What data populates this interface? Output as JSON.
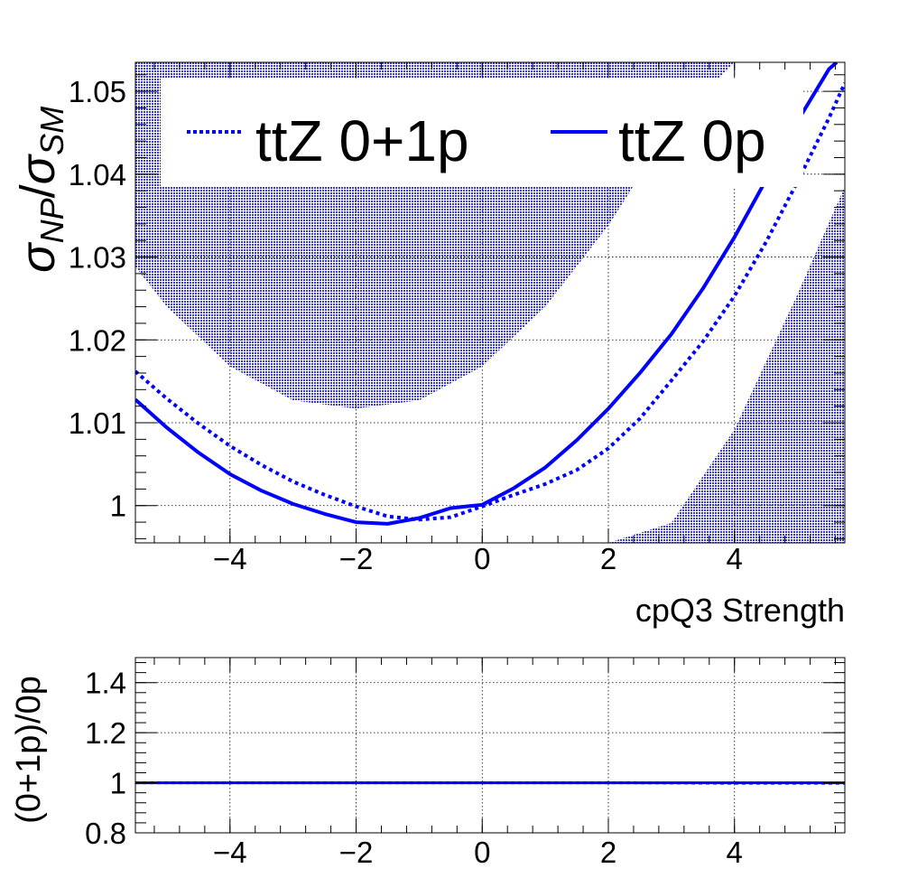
{
  "chart_data": [
    {
      "type": "line",
      "xlabel": "cpQ3 Strength",
      "ylabel_symbol": "σ",
      "ylabel_num_sub": "NP",
      "ylabel_den_sub": "SM",
      "xlim": [
        -5.5,
        5.75
      ],
      "ylim": [
        0.9955,
        1.0535
      ],
      "xticks": [
        {
          "value": -4,
          "label": "−4"
        },
        {
          "value": -2,
          "label": "−2"
        },
        {
          "value": 0,
          "label": "0"
        },
        {
          "value": 2,
          "label": "2"
        },
        {
          "value": 4,
          "label": "4"
        }
      ],
      "yticks": [
        {
          "value": 1.0,
          "label": "1"
        },
        {
          "value": 1.01,
          "label": "1.01"
        },
        {
          "value": 1.02,
          "label": "1.02"
        },
        {
          "value": 1.03,
          "label": "1.03"
        },
        {
          "value": 1.04,
          "label": "1.04"
        },
        {
          "value": 1.05,
          "label": "1.05"
        }
      ],
      "grid": true,
      "legend_position": "top",
      "band": {
        "color": "#2b2bc8",
        "x": [
          -5.5,
          -5.0,
          -4.0,
          -3.0,
          -2.0,
          -1.0,
          0.0,
          1.0,
          2.0,
          3.0,
          4.0,
          5.0,
          5.75
        ],
        "upper": [
          1.0535,
          1.0535,
          1.0535,
          1.0535,
          1.0535,
          1.0535,
          1.0535,
          1.0535,
          1.0535,
          1.0535,
          1.0535,
          1.0535,
          1.0535
        ],
        "upper_visible": [
          1.0288,
          1.024,
          1.0168,
          1.0127,
          1.0117,
          1.0127,
          1.0168,
          1.024,
          1.0338,
          1.0458,
          1.0535,
          1.0535,
          1.0535
        ],
        "lower": [
          0.9955,
          0.9955,
          0.9955,
          0.9955,
          0.9955,
          0.9955,
          0.9955,
          0.9955,
          0.9955,
          0.9979,
          1.0092,
          1.0255,
          1.0385
        ]
      },
      "series": [
        {
          "name": "ttZ 0+1p",
          "style": "dotted",
          "color": "#0000ff",
          "x": [
            -5.5,
            -5.0,
            -4.5,
            -4.0,
            -3.5,
            -3.0,
            -2.5,
            -2.0,
            -1.5,
            -1.0,
            -0.5,
            0.0,
            0.5,
            1.0,
            1.5,
            2.0,
            2.5,
            3.0,
            3.5,
            4.0,
            4.5,
            5.0,
            5.5,
            5.75
          ],
          "y": [
            1.0162,
            1.0129,
            1.0099,
            1.0072,
            1.0049,
            1.0029,
            1.0013,
            0.9999,
            0.9987,
            0.9983,
            0.9986,
            0.9999,
            1.0013,
            1.0026,
            1.0043,
            1.0069,
            1.0105,
            1.0151,
            1.0198,
            1.0253,
            1.0318,
            1.0391,
            1.0468,
            1.051
          ]
        },
        {
          "name": "ttZ 0p",
          "style": "solid",
          "color": "#0000ff",
          "x": [
            -5.5,
            -5.0,
            -4.5,
            -4.0,
            -3.5,
            -3.0,
            -2.5,
            -2.0,
            -1.5,
            -1.0,
            -0.5,
            0.0,
            0.5,
            1.0,
            1.5,
            2.0,
            2.5,
            3.0,
            3.5,
            4.0,
            4.5,
            5.0,
            5.5,
            5.62
          ],
          "y": [
            1.0128,
            1.0094,
            1.0064,
            1.0038,
            1.0018,
            1.0002,
            0.999,
            0.998,
            0.9978,
            0.9985,
            0.9997,
            1.0001,
            1.0021,
            1.0046,
            1.0079,
            1.0117,
            1.016,
            1.0207,
            1.0262,
            1.0324,
            1.0393,
            1.0464,
            1.0527,
            1.0535
          ]
        }
      ]
    },
    {
      "type": "line",
      "ylabel": "(0+1p)/0p",
      "xlim": [
        -5.5,
        5.75
      ],
      "ylim": [
        0.8,
        1.5
      ],
      "xticks": [
        {
          "value": -4,
          "label": "−4"
        },
        {
          "value": -2,
          "label": "−2"
        },
        {
          "value": 0,
          "label": "0"
        },
        {
          "value": 2,
          "label": "2"
        },
        {
          "value": 4,
          "label": "4"
        }
      ],
      "yticks": [
        {
          "value": 0.8,
          "label": "0.8"
        },
        {
          "value": 1.0,
          "label": "1"
        },
        {
          "value": 1.2,
          "label": "1.2"
        },
        {
          "value": 1.4,
          "label": "1.4"
        }
      ],
      "grid": true,
      "series": [
        {
          "style": "dotted",
          "color": "#0000ff",
          "x": [
            -5.5,
            -4.0,
            -2.0,
            0.0,
            2.0,
            4.0,
            5.75
          ],
          "y": [
            1.0,
            1.0,
            1.0,
            1.0,
            1.0,
            0.998,
            0.998
          ]
        },
        {
          "style": "solid",
          "color": "#0000ff",
          "x": [
            -5.5,
            -4.0,
            -2.0,
            0.0,
            2.0,
            4.0,
            5.75
          ],
          "y": [
            1.0,
            1.0,
            1.0,
            1.0,
            1.0,
            1.0,
            1.0
          ]
        }
      ]
    }
  ]
}
